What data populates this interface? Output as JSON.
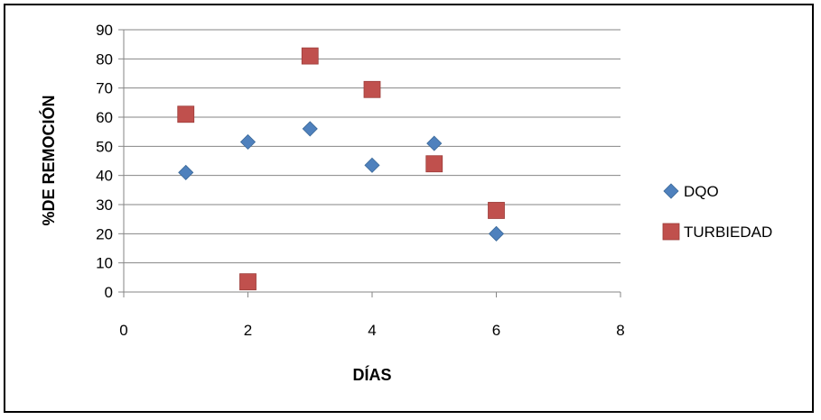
{
  "chart_data": {
    "type": "scatter",
    "xlabel": "DÍAS",
    "ylabel": "%DE REMOCIÓN",
    "xlim": [
      0,
      8
    ],
    "ylim": [
      0,
      90
    ],
    "xticks": [
      0,
      2,
      4,
      6,
      8
    ],
    "yticks": [
      0,
      10,
      20,
      30,
      40,
      50,
      60,
      70,
      80,
      90
    ],
    "grid": "horizontal",
    "legend_position": "right",
    "series": [
      {
        "name": "DQO",
        "marker": "diamond",
        "color": "#4F81BD",
        "x": [
          1,
          2,
          3,
          4,
          5,
          6
        ],
        "y": [
          41,
          51.5,
          56,
          43.5,
          51,
          20
        ]
      },
      {
        "name": "TURBIEDAD",
        "marker": "square",
        "color": "#C0504D",
        "x": [
          1,
          2,
          3,
          4,
          5,
          6
        ],
        "y": [
          61,
          3.5,
          81,
          69.5,
          44,
          28
        ]
      }
    ]
  }
}
